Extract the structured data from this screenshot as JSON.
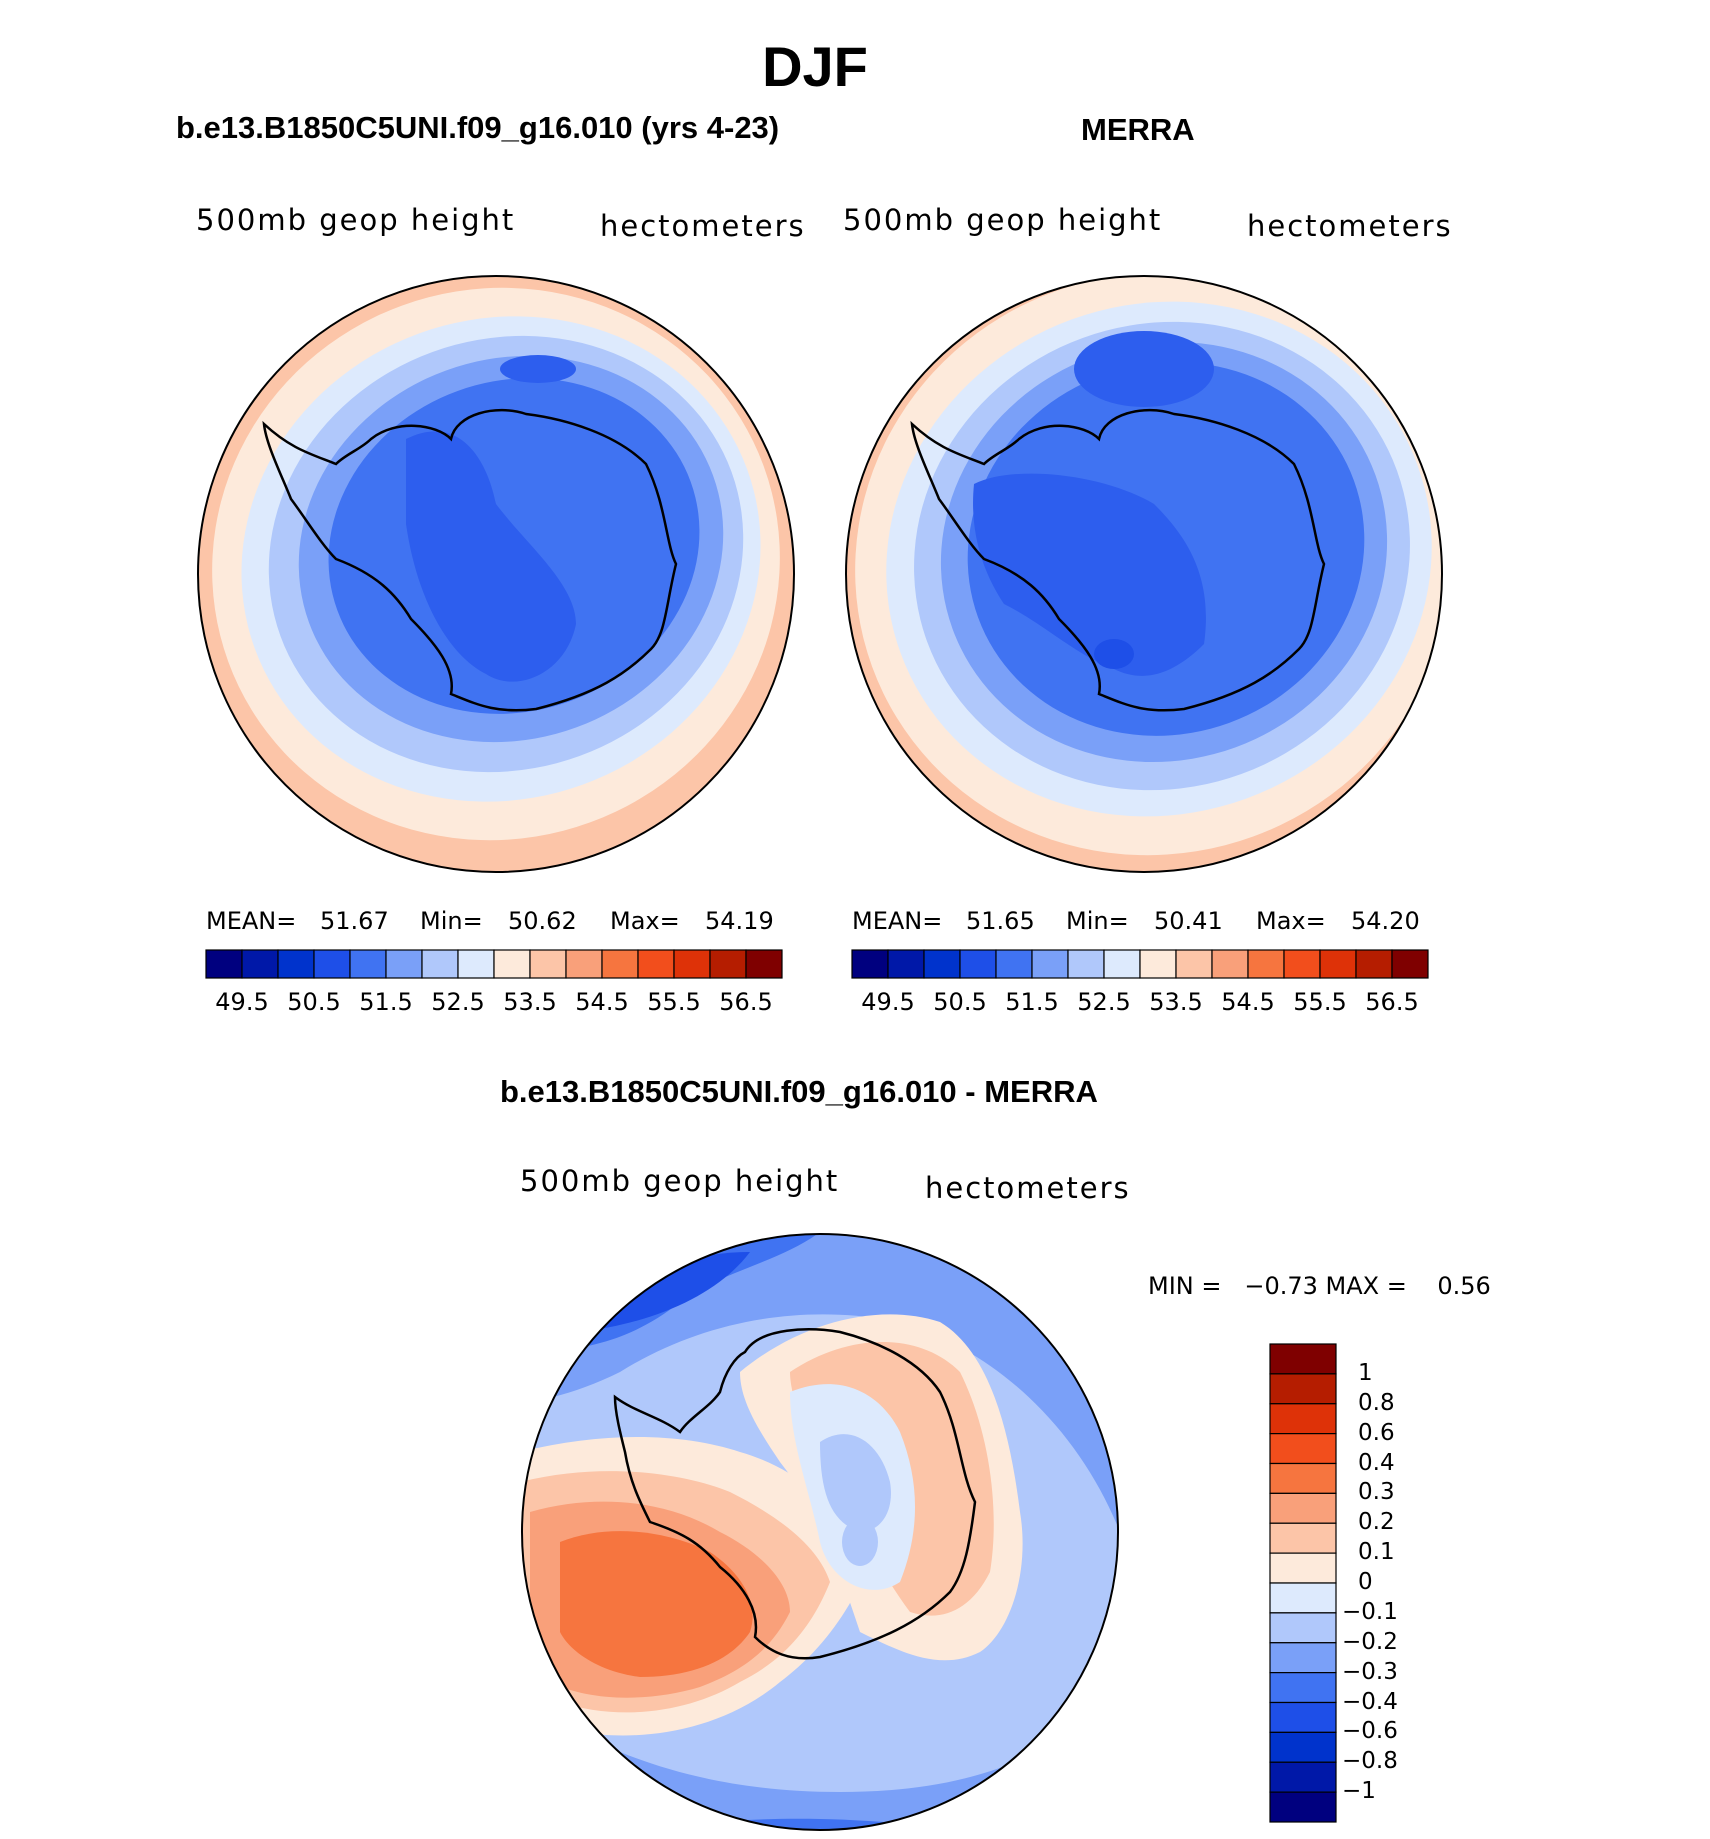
{
  "figure": {
    "title": "DJF",
    "panel_left": {
      "title": "b.e13.B1850C5UNI.f09_g16.010 (yrs 4-23)",
      "variable": "500mb geop height",
      "units": "hectometers",
      "stats": {
        "mean_label": "MEAN=",
        "mean": "51.67",
        "min_label": "Min=",
        "min": "50.62",
        "max_label": "Max=",
        "max": "54.19"
      }
    },
    "panel_right": {
      "title": "MERRA",
      "variable": "500mb geop height",
      "units": "hectometers",
      "stats": {
        "mean_label": "MEAN=",
        "mean": "51.65",
        "min_label": "Min=",
        "min": "50.41",
        "max_label": "Max=",
        "max": "54.20"
      }
    },
    "panel_diff": {
      "title": "b.e13.B1850C5UNI.f09_g16.010 - MERRA",
      "variable": "500mb geop height",
      "units": "hectometers",
      "minmax_text": "MIN =   −0.73 MAX =    0.56"
    },
    "colorbar_top": {
      "colors": [
        "#00007f",
        "#0018a8",
        "#0033cc",
        "#1e4fe8",
        "#4073f2",
        "#7aa0f8",
        "#b0c8fb",
        "#ddeafd",
        "#fdeadb",
        "#fcc5a8",
        "#f9a07a",
        "#f6753f",
        "#f24e1c",
        "#de3208",
        "#b51d00",
        "#7f0000"
      ],
      "tick_labels": [
        "49.5",
        "50.5",
        "51.5",
        "52.5",
        "53.5",
        "54.5",
        "55.5",
        "56.5"
      ]
    },
    "colorbar_diff": {
      "colors_top_to_bottom": [
        "#7f0000",
        "#b51d00",
        "#de3208",
        "#f24e1c",
        "#f6753f",
        "#f9a07a",
        "#fcc5a8",
        "#fdeadb",
        "#ddeafd",
        "#b0c8fb",
        "#7aa0f8",
        "#4073f2",
        "#1e4fe8",
        "#0033cc",
        "#0018a8",
        "#00007f"
      ],
      "tick_labels": [
        "1",
        "0.8",
        "0.6",
        "0.4",
        "0.3",
        "0.2",
        "0.1",
        "0",
        "−0.1",
        "−0.2",
        "−0.3",
        "−0.4",
        "−0.6",
        "−0.8",
        "−1"
      ]
    }
  }
}
